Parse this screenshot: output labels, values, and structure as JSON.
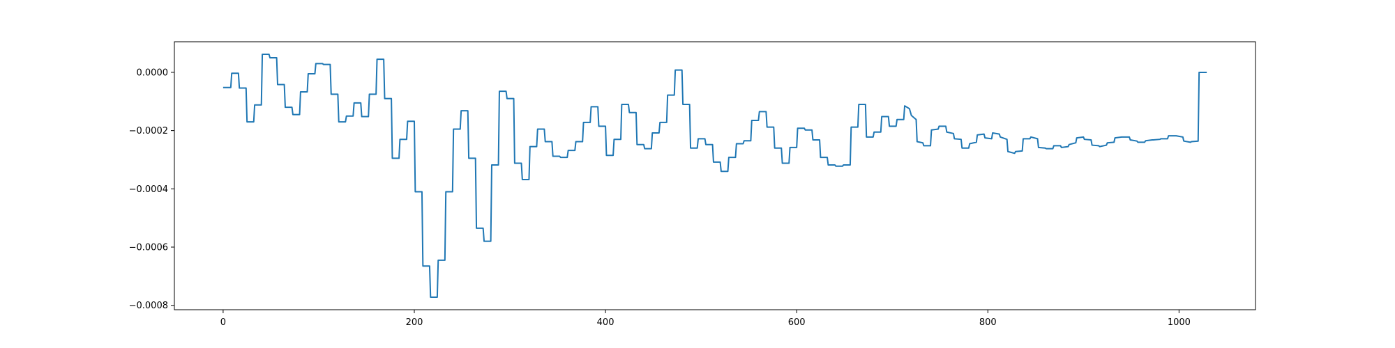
{
  "chart_data": {
    "type": "line",
    "title": "",
    "xlabel": "",
    "ylabel": "",
    "grid": false,
    "legend": "none",
    "xlim": [
      -51,
      1080
    ],
    "ylim": [
      -0.000815,
      0.000105
    ],
    "x_ticks": [
      0,
      200,
      400,
      600,
      800,
      1000
    ],
    "x_tick_labels": [
      "0",
      "200",
      "400",
      "600",
      "800",
      "1000"
    ],
    "y_ticks": [
      0.0,
      -0.0002,
      -0.0004,
      -0.0006,
      -0.0008
    ],
    "y_tick_labels": [
      "0.0000",
      "−0.0002",
      "−0.0004",
      "−0.0006",
      "−0.0008"
    ],
    "series": [
      {
        "color": "#1f77b4",
        "points": [
          [
            0,
            -5.2e-05
          ],
          [
            8,
            -5.2e-05
          ],
          [
            9,
            -3e-06
          ],
          [
            16,
            -3e-06
          ],
          [
            17,
            -5.4e-05
          ],
          [
            24,
            -5.4e-05
          ],
          [
            25,
            -0.00017
          ],
          [
            32,
            -0.00017
          ],
          [
            33,
            -0.000112
          ],
          [
            40,
            -0.000112
          ],
          [
            41,
            6.2e-05
          ],
          [
            48,
            6.2e-05
          ],
          [
            49,
            5e-05
          ],
          [
            56,
            5e-05
          ],
          [
            57,
            -4.2e-05
          ],
          [
            64,
            -4.2e-05
          ],
          [
            65,
            -0.00012
          ],
          [
            72,
            -0.00012
          ],
          [
            73,
            -0.000145
          ],
          [
            80,
            -0.000145
          ],
          [
            81,
            -6.7e-05
          ],
          [
            88,
            -6.7e-05
          ],
          [
            89,
            -5e-06
          ],
          [
            96,
            -5e-06
          ],
          [
            97,
            3e-05
          ],
          [
            104,
            3e-05
          ],
          [
            105,
            2.7e-05
          ],
          [
            112,
            2.7e-05
          ],
          [
            113,
            -7.5e-05
          ],
          [
            120,
            -7.5e-05
          ],
          [
            121,
            -0.00017
          ],
          [
            128,
            -0.00017
          ],
          [
            129,
            -0.00015
          ],
          [
            136,
            -0.00015
          ],
          [
            137,
            -0.000105
          ],
          [
            144,
            -0.000105
          ],
          [
            145,
            -0.000152
          ],
          [
            152,
            -0.000152
          ],
          [
            153,
            -7.5e-05
          ],
          [
            160,
            -7.5e-05
          ],
          [
            161,
            4.5e-05
          ],
          [
            168,
            4.5e-05
          ],
          [
            169,
            -9e-05
          ],
          [
            176,
            -9e-05
          ],
          [
            177,
            -0.000295
          ],
          [
            184,
            -0.000295
          ],
          [
            185,
            -0.00023
          ],
          [
            192,
            -0.00023
          ],
          [
            193,
            -0.000168
          ],
          [
            200,
            -0.000168
          ],
          [
            201,
            -0.00041
          ],
          [
            208,
            -0.00041
          ],
          [
            209,
            -0.000665
          ],
          [
            216,
            -0.000665
          ],
          [
            217,
            -0.000772
          ],
          [
            224,
            -0.000772
          ],
          [
            225,
            -0.000645
          ],
          [
            232,
            -0.000645
          ],
          [
            233,
            -0.00041
          ],
          [
            240,
            -0.00041
          ],
          [
            241,
            -0.000195
          ],
          [
            248,
            -0.000195
          ],
          [
            249,
            -0.000132
          ],
          [
            256,
            -0.000132
          ],
          [
            257,
            -0.000295
          ],
          [
            264,
            -0.000295
          ],
          [
            265,
            -0.000535
          ],
          [
            272,
            -0.000535
          ],
          [
            273,
            -0.00058
          ],
          [
            280,
            -0.00058
          ],
          [
            281,
            -0.000318
          ],
          [
            288,
            -0.000318
          ],
          [
            289,
            -6.5e-05
          ],
          [
            296,
            -6.5e-05
          ],
          [
            297,
            -9e-05
          ],
          [
            304,
            -9e-05
          ],
          [
            305,
            -0.000312
          ],
          [
            312,
            -0.000312
          ],
          [
            313,
            -0.000368
          ],
          [
            320,
            -0.000368
          ],
          [
            321,
            -0.000255
          ],
          [
            328,
            -0.000255
          ],
          [
            329,
            -0.000195
          ],
          [
            336,
            -0.000195
          ],
          [
            337,
            -0.000238
          ],
          [
            344,
            -0.000238
          ],
          [
            345,
            -0.000288
          ],
          [
            352,
            -0.000288
          ],
          [
            353,
            -0.000292
          ],
          [
            360,
            -0.000292
          ],
          [
            361,
            -0.000268
          ],
          [
            368,
            -0.000268
          ],
          [
            369,
            -0.000238
          ],
          [
            376,
            -0.000238
          ],
          [
            377,
            -0.000172
          ],
          [
            384,
            -0.000172
          ],
          [
            385,
            -0.000118
          ],
          [
            392,
            -0.000118
          ],
          [
            393,
            -0.000185
          ],
          [
            400,
            -0.000185
          ],
          [
            401,
            -0.000285
          ],
          [
            408,
            -0.000285
          ],
          [
            409,
            -0.00023
          ],
          [
            416,
            -0.00023
          ],
          [
            417,
            -0.00011
          ],
          [
            424,
            -0.00011
          ],
          [
            425,
            -0.000138
          ],
          [
            432,
            -0.000138
          ],
          [
            433,
            -0.000248
          ],
          [
            440,
            -0.000248
          ],
          [
            441,
            -0.000262
          ],
          [
            448,
            -0.000262
          ],
          [
            449,
            -0.000208
          ],
          [
            456,
            -0.000208
          ],
          [
            457,
            -0.000172
          ],
          [
            464,
            -0.000172
          ],
          [
            465,
            -7.8e-05
          ],
          [
            472,
            -7.8e-05
          ],
          [
            473,
            8e-06
          ],
          [
            480,
            8e-06
          ],
          [
            481,
            -0.00011
          ],
          [
            488,
            -0.00011
          ],
          [
            489,
            -0.00026
          ],
          [
            496,
            -0.00026
          ],
          [
            497,
            -0.000228
          ],
          [
            504,
            -0.000228
          ],
          [
            505,
            -0.000248
          ],
          [
            512,
            -0.000248
          ],
          [
            513,
            -0.000308
          ],
          [
            520,
            -0.000308
          ],
          [
            521,
            -0.00034
          ],
          [
            528,
            -0.00034
          ],
          [
            529,
            -0.000292
          ],
          [
            536,
            -0.000292
          ],
          [
            537,
            -0.000245
          ],
          [
            544,
            -0.000245
          ],
          [
            545,
            -0.000235
          ],
          [
            552,
            -0.000235
          ],
          [
            553,
            -0.000165
          ],
          [
            560,
            -0.000165
          ],
          [
            561,
            -0.000135
          ],
          [
            568,
            -0.000135
          ],
          [
            569,
            -0.000188
          ],
          [
            576,
            -0.000188
          ],
          [
            577,
            -0.00026
          ],
          [
            584,
            -0.00026
          ],
          [
            585,
            -0.000312
          ],
          [
            592,
            -0.000312
          ],
          [
            593,
            -0.000258
          ],
          [
            600,
            -0.000258
          ],
          [
            601,
            -0.000192
          ],
          [
            608,
            -0.000192
          ],
          [
            609,
            -0.000198
          ],
          [
            616,
            -0.000198
          ],
          [
            617,
            -0.000232
          ],
          [
            624,
            -0.000232
          ],
          [
            625,
            -0.000292
          ],
          [
            632,
            -0.000292
          ],
          [
            633,
            -0.000318
          ],
          [
            640,
            -0.000318
          ],
          [
            641,
            -0.000322
          ],
          [
            648,
            -0.000322
          ],
          [
            649,
            -0.000318
          ],
          [
            656,
            -0.000318
          ],
          [
            657,
            -0.000188
          ],
          [
            664,
            -0.000188
          ],
          [
            665,
            -0.00011
          ],
          [
            672,
            -0.00011
          ],
          [
            673,
            -0.000222
          ],
          [
            680,
            -0.000222
          ],
          [
            681,
            -0.000205
          ],
          [
            688,
            -0.000205
          ],
          [
            689,
            -0.000152
          ],
          [
            696,
            -0.000152
          ],
          [
            697,
            -0.000185
          ],
          [
            704,
            -0.000185
          ],
          [
            705,
            -0.000162
          ],
          [
            712,
            -0.000162
          ],
          [
            713,
            -0.000115
          ],
          [
            718,
            -0.000125
          ],
          [
            720,
            -0.000148
          ],
          [
            725,
            -0.000162
          ],
          [
            726,
            -0.000238
          ],
          [
            732,
            -0.000242
          ],
          [
            733,
            -0.000252
          ],
          [
            740,
            -0.000252
          ],
          [
            741,
            -0.000198
          ],
          [
            748,
            -0.000195
          ],
          [
            749,
            -0.000185
          ],
          [
            756,
            -0.000185
          ],
          [
            757,
            -0.000205
          ],
          [
            764,
            -0.00021
          ],
          [
            765,
            -0.000228
          ],
          [
            772,
            -0.00023
          ],
          [
            773,
            -0.00026
          ],
          [
            780,
            -0.00026
          ],
          [
            781,
            -0.000245
          ],
          [
            788,
            -0.00024
          ],
          [
            789,
            -0.000215
          ],
          [
            796,
            -0.000212
          ],
          [
            797,
            -0.000225
          ],
          [
            804,
            -0.000228
          ],
          [
            805,
            -0.000208
          ],
          [
            812,
            -0.000212
          ],
          [
            813,
            -0.000222
          ],
          [
            820,
            -0.00023
          ],
          [
            821,
            -0.000272
          ],
          [
            828,
            -0.000278
          ],
          [
            829,
            -0.000272
          ],
          [
            836,
            -0.00027
          ],
          [
            837,
            -0.000228
          ],
          [
            844,
            -0.000228
          ],
          [
            845,
            -0.000222
          ],
          [
            852,
            -0.000228
          ],
          [
            853,
            -0.000258
          ],
          [
            860,
            -0.00026
          ],
          [
            861,
            -0.000262
          ],
          [
            868,
            -0.000262
          ],
          [
            869,
            -0.000252
          ],
          [
            876,
            -0.000252
          ],
          [
            877,
            -0.000258
          ],
          [
            884,
            -0.000255
          ],
          [
            885,
            -0.000248
          ],
          [
            892,
            -0.000242
          ],
          [
            893,
            -0.000225
          ],
          [
            900,
            -0.000222
          ],
          [
            901,
            -0.00023
          ],
          [
            908,
            -0.000232
          ],
          [
            909,
            -0.00025
          ],
          [
            916,
            -0.000252
          ],
          [
            917,
            -0.000255
          ],
          [
            924,
            -0.00025
          ],
          [
            925,
            -0.000242
          ],
          [
            932,
            -0.00024
          ],
          [
            933,
            -0.000225
          ],
          [
            940,
            -0.000222
          ],
          [
            941,
            -0.000222
          ],
          [
            948,
            -0.000222
          ],
          [
            949,
            -0.000232
          ],
          [
            956,
            -0.000236
          ],
          [
            957,
            -0.00024
          ],
          [
            964,
            -0.00024
          ],
          [
            965,
            -0.000235
          ],
          [
            972,
            -0.000232
          ],
          [
            973,
            -0.000232
          ],
          [
            980,
            -0.00023
          ],
          [
            981,
            -0.000228
          ],
          [
            988,
            -0.000228
          ],
          [
            989,
            -0.000218
          ],
          [
            996,
            -0.000218
          ],
          [
            997,
            -0.000218
          ],
          [
            1004,
            -0.000222
          ],
          [
            1005,
            -0.000236
          ],
          [
            1012,
            -0.00024
          ],
          [
            1013,
            -0.000238
          ],
          [
            1020,
            -0.000236
          ],
          [
            1021,
            0.0
          ],
          [
            1029,
            0.0
          ]
        ]
      }
    ]
  }
}
